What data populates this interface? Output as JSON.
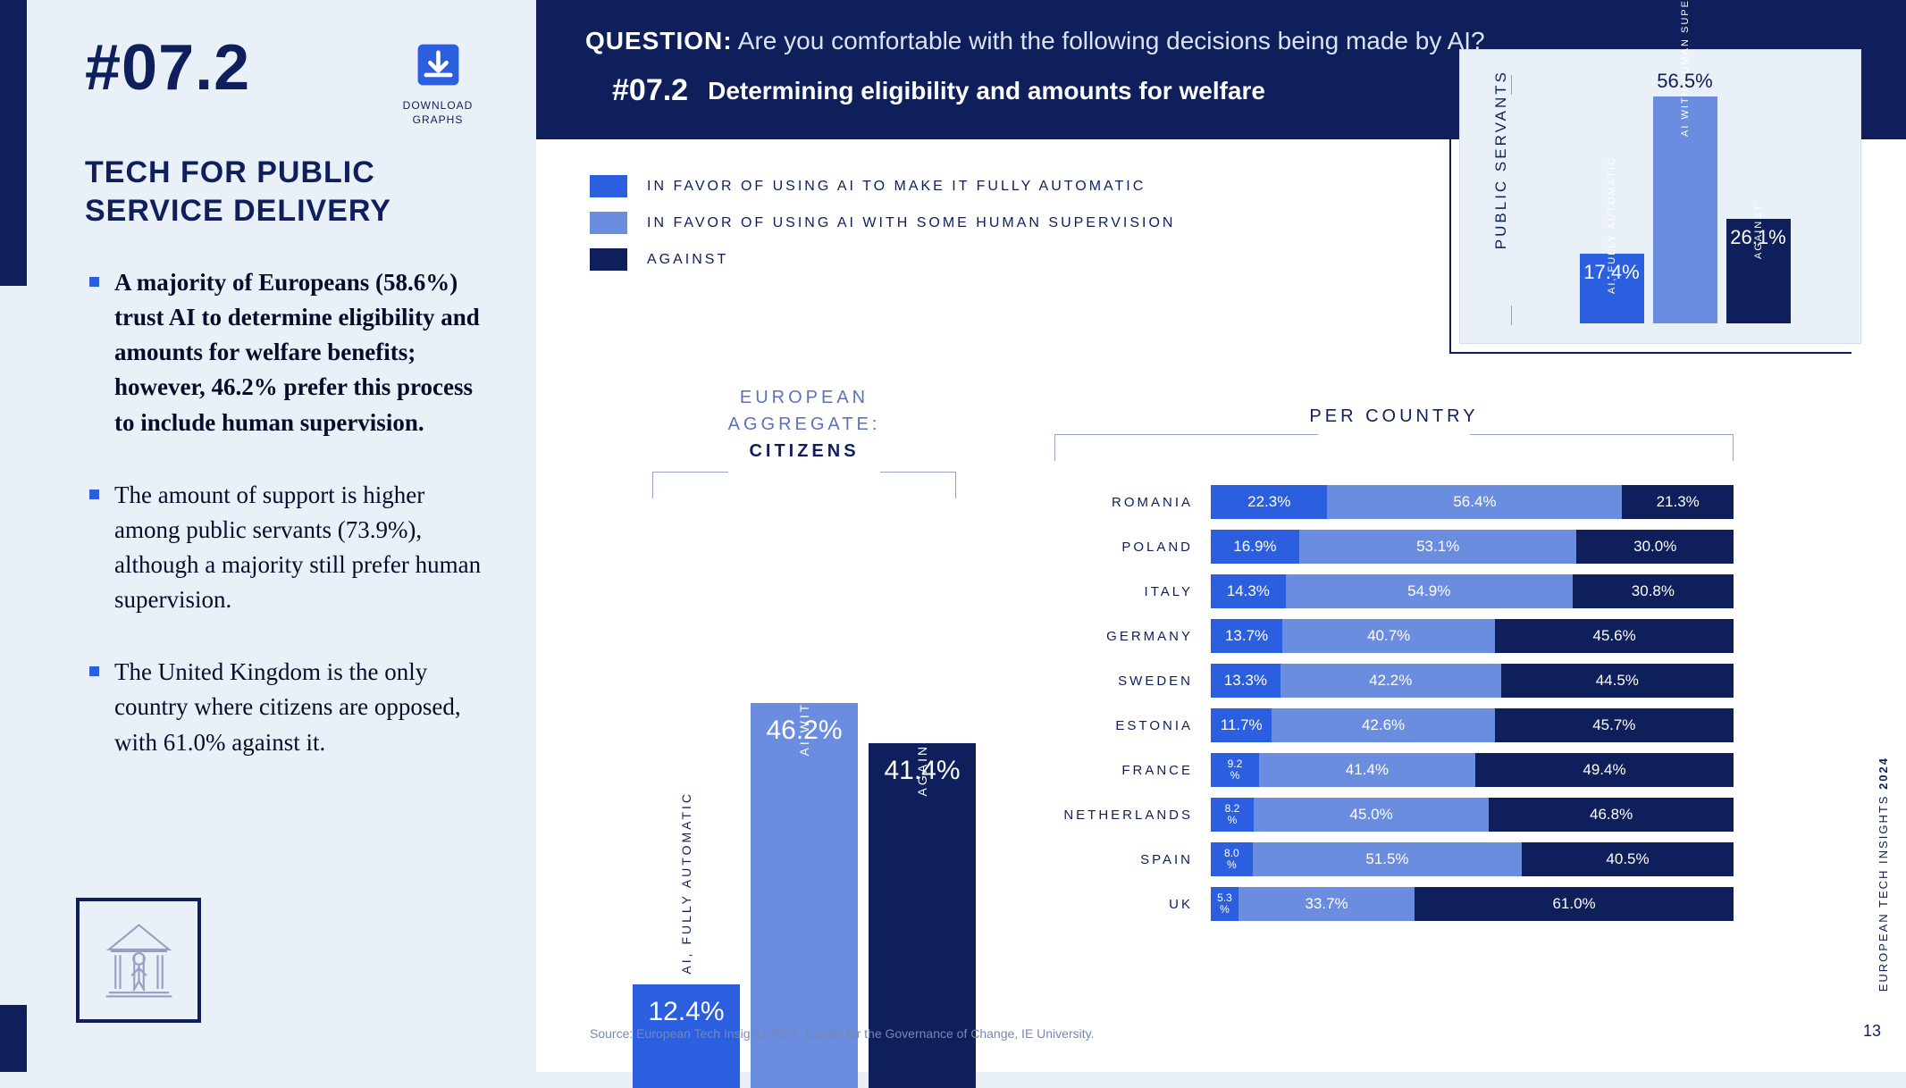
{
  "colors": {
    "c1": "#2b5fe0",
    "c2": "#6a8de0",
    "c3": "#0e1f5b",
    "panel_bg": "#eaf0f8",
    "main_bg": "#ffffff"
  },
  "slide": {
    "number": "#07.2",
    "download_label": "DOWNLOAD\nGRAPHS",
    "section_title": "TECH FOR PUBLIC SERVICE DELIVERY",
    "bullets": [
      "A majority of Europeans (58.6%) trust AI to determine eligibility and amounts for welfare benefits; however, 46.2% prefer this process to include human supervision.",
      "The amount of support is higher among public servants (73.9%), although a majority still prefer human supervision.",
      "The United Kingdom is the only country where citizens are opposed, with 61.0% against it."
    ]
  },
  "question": {
    "label": "QUESTION:",
    "text": "Are you comfortable with the following decisions being made by AI?",
    "sub_num": "#07.2",
    "sub_text": "Determining eligibility and amounts for welfare"
  },
  "legend": {
    "items": [
      {
        "label": "IN FAVOR OF USING AI TO MAKE IT FULLY AUTOMATIC"
      },
      {
        "label": "IN FAVOR OF USING AI WITH SOME HUMAN SUPERVISION"
      },
      {
        "label": "AGAINST"
      }
    ]
  },
  "citizens_chart": {
    "title_top": "EUROPEAN\nAGGREGATE:",
    "title_bottom": "CITIZENS",
    "max": 60,
    "bars": [
      {
        "label": "AI, FULLY\nAUTOMATIC",
        "value": 12.4,
        "text": "12.4%",
        "label_inside": false
      },
      {
        "label": "AI WITH HUMAN\nSUPERVISION",
        "value": 46.2,
        "text": "46.2%",
        "label_inside": true
      },
      {
        "label": "AGAINST",
        "value": 41.4,
        "text": "41.4%",
        "label_inside": true
      }
    ]
  },
  "servants_chart": {
    "title": "PUBLIC SERVANTS",
    "max": 60,
    "bars": [
      {
        "label": "AI, FULLY AUTOMATIC",
        "value": 17.4,
        "text": "17.4%"
      },
      {
        "label": "AI WITH HUMAN\nSUPERVISION",
        "value": 56.5,
        "text": "56.5%"
      },
      {
        "label": "AGAINST",
        "value": 26.1,
        "text": "26.1%"
      }
    ]
  },
  "per_country": {
    "title": "PER COUNTRY",
    "rows": [
      {
        "name": "ROMANIA",
        "v": [
          22.3,
          56.4,
          21.3
        ]
      },
      {
        "name": "POLAND",
        "v": [
          16.9,
          53.1,
          30.0
        ]
      },
      {
        "name": "ITALY",
        "v": [
          14.3,
          54.9,
          30.8
        ]
      },
      {
        "name": "GERMANY",
        "v": [
          13.7,
          40.7,
          45.6
        ]
      },
      {
        "name": "SWEDEN",
        "v": [
          13.3,
          42.2,
          44.5
        ]
      },
      {
        "name": "ESTONIA",
        "v": [
          11.7,
          42.6,
          45.7
        ]
      },
      {
        "name": "FRANCE",
        "v": [
          9.2,
          41.4,
          49.4
        ]
      },
      {
        "name": "NETHERLANDS",
        "v": [
          8.2,
          45.0,
          46.8
        ]
      },
      {
        "name": "SPAIN",
        "v": [
          8.0,
          51.5,
          40.5
        ]
      },
      {
        "name": "UK",
        "v": [
          5.3,
          33.7,
          61.0
        ]
      }
    ]
  },
  "source": "Source: European Tech Insights 2024. Center for the Governance of Change, IE University.",
  "sidetext": "EUROPEAN TECH INSIGHTS",
  "sidetext_year": "2024",
  "page_num": "13"
}
